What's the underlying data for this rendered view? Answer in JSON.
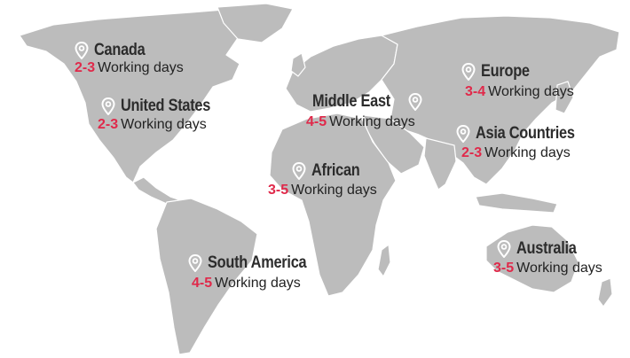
{
  "colors": {
    "land": "#bcbcbc",
    "accent": "#e0294a",
    "text": "#2c2c2c",
    "background": "#ffffff"
  },
  "icon": "location-pin-icon",
  "regions": {
    "canada": {
      "name": "Canada",
      "range": "2-3",
      "unit": "Working days"
    },
    "united_states": {
      "name": "United States",
      "range": "2-3",
      "unit": "Working days"
    },
    "middle_east": {
      "name": "Middle East",
      "range": "4-5",
      "unit": "Working days"
    },
    "europe": {
      "name": "Europe",
      "range": "3-4",
      "unit": "Working days"
    },
    "asia": {
      "name": "Asia Countries",
      "range": "2-3",
      "unit": "Working days"
    },
    "african": {
      "name": "African",
      "range": "3-5",
      "unit": "Working days"
    },
    "south_america": {
      "name": "South America",
      "range": "4-5",
      "unit": "Working days"
    },
    "australia": {
      "name": "Australia",
      "range": "3-5",
      "unit": "Working days"
    }
  }
}
